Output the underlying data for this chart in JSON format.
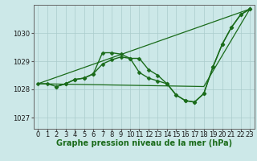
{
  "background_color": "#cce8e8",
  "plot_bg_color": "#cce8e8",
  "grid_color": "#aacccc",
  "line_color": "#1a6b1a",
  "marker_color": "#1a6b1a",
  "xlabel": "Graphe pression niveau de la mer (hPa)",
  "xlabel_fontsize": 7,
  "tick_fontsize": 6,
  "ylim": [
    1026.6,
    1031.0
  ],
  "xlim": [
    -0.5,
    23.5
  ],
  "yticks": [
    1027,
    1028,
    1029,
    1030
  ],
  "xticks": [
    0,
    1,
    2,
    3,
    4,
    5,
    6,
    7,
    8,
    9,
    10,
    11,
    12,
    13,
    14,
    15,
    16,
    17,
    18,
    19,
    20,
    21,
    22,
    23
  ],
  "series": [
    {
      "x": [
        0,
        1,
        2,
        3,
        4,
        5,
        6,
        7,
        8,
        9,
        10,
        11,
        12,
        13,
        14,
        15,
        16,
        17,
        18,
        19,
        20,
        21,
        22,
        23
      ],
      "y": [
        1028.2,
        1028.2,
        1028.1,
        1028.2,
        1028.35,
        1028.4,
        1028.55,
        1029.3,
        1029.3,
        1029.25,
        1029.1,
        1029.1,
        1028.7,
        1028.5,
        1028.2,
        1027.8,
        1027.6,
        1027.55,
        1027.85,
        1028.8,
        1029.6,
        1030.2,
        1030.65,
        1030.85
      ],
      "marker": "D",
      "markersize": 2.5,
      "linewidth": 1.0
    },
    {
      "x": [
        2,
        3,
        4,
        5,
        6,
        7,
        8,
        9,
        10,
        11,
        12,
        13,
        14,
        15,
        16,
        17,
        18,
        19,
        20,
        21,
        22,
        23
      ],
      "y": [
        1028.1,
        1028.2,
        1028.35,
        1028.4,
        1028.55,
        1028.9,
        1029.05,
        1029.15,
        1029.1,
        1028.6,
        1028.4,
        1028.3,
        1028.2,
        1027.8,
        1027.6,
        1027.55,
        1027.85,
        1028.8,
        1029.6,
        1030.2,
        1030.65,
        1030.85
      ],
      "marker": "D",
      "markersize": 2.5,
      "linewidth": 1.0
    },
    {
      "x": [
        0,
        23
      ],
      "y": [
        1028.2,
        1030.85
      ],
      "marker": null,
      "markersize": 0,
      "linewidth": 0.9
    },
    {
      "x": [
        0,
        18,
        23
      ],
      "y": [
        1028.2,
        1028.1,
        1030.85
      ],
      "marker": null,
      "markersize": 0,
      "linewidth": 0.9
    }
  ]
}
